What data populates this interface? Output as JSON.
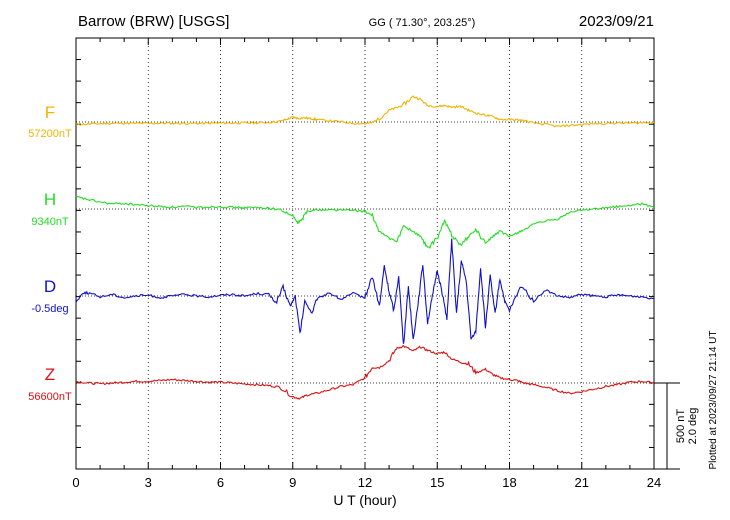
{
  "header": {
    "station": "Barrow (BRW)  [USGS]",
    "coords": "GG ( 71.30°, 203.25°)",
    "date": "2023/09/21"
  },
  "side_note": "Plotted at 2023/09/27 21:14 UT",
  "scale_bar": {
    "line1": "500 nT",
    "line2": "2.0 deg"
  },
  "chart_data": {
    "type": "line",
    "xlabel": "U T (hour)",
    "xlim": [
      0,
      24
    ],
    "xticks": [
      "0",
      "3",
      "6",
      "9",
      "12",
      "15",
      "18",
      "21",
      "24"
    ],
    "grid": true,
    "series": [
      {
        "name": "F",
        "baseline_label": "57200nT",
        "color": "#f0b400",
        "x": [
          0,
          0.5,
          1,
          1.5,
          2,
          2.5,
          3,
          3.5,
          4,
          4.5,
          5,
          5.5,
          6,
          6.5,
          7,
          7.5,
          8,
          8.5,
          8.8,
          9,
          9.2,
          9.5,
          9.8,
          10,
          10.5,
          11,
          11.5,
          12,
          12.3,
          12.6,
          13,
          13.3,
          13.6,
          14,
          14.3,
          14.6,
          15,
          15.3,
          15.6,
          16,
          16.3,
          16.6,
          17,
          17.3,
          17.6,
          18,
          18.3,
          18.6,
          19,
          19.5,
          20,
          20.5,
          21,
          21.5,
          22,
          22.5,
          23,
          23.5,
          24
        ],
        "y": [
          -14,
          -12,
          -10,
          -8,
          -7,
          -8,
          -8,
          -7,
          -7,
          -8,
          -8,
          -7,
          -6,
          -6,
          -5,
          -5,
          -2,
          5,
          18,
          29,
          22,
          24,
          19,
          14,
          7,
          1,
          -7,
          -10,
          -4,
          23,
          68,
          82,
          100,
          148,
          132,
          96,
          90,
          96,
          87,
          90,
          68,
          52,
          40,
          32,
          15,
          14,
          12,
          8,
          -6,
          -14,
          -26,
          -20,
          -15,
          -10,
          -8,
          -6,
          -6,
          -4,
          -2
        ]
      },
      {
        "name": "H",
        "baseline_label": "9340nT",
        "color": "#22dd22",
        "x": [
          0,
          0.5,
          1,
          1.5,
          2,
          2.5,
          3,
          3.5,
          4,
          4.5,
          5,
          5.5,
          6,
          6.5,
          7,
          7.5,
          8,
          8.5,
          9,
          9.2,
          9.4,
          9.6,
          10,
          10.5,
          11,
          11.5,
          12,
          12.3,
          12.6,
          13,
          13.3,
          13.6,
          14,
          14.3,
          14.6,
          15,
          15.3,
          15.6,
          16,
          16.3,
          16.6,
          17,
          17.3,
          17.6,
          18,
          18.3,
          18.6,
          19,
          19.5,
          20,
          20.5,
          21,
          21.5,
          22,
          22.5,
          23,
          23.5,
          24
        ],
        "y": [
          70,
          55,
          40,
          30,
          32,
          25,
          20,
          15,
          10,
          15,
          10,
          12,
          14,
          10,
          8,
          8,
          5,
          -5,
          -40,
          -80,
          -60,
          -10,
          -5,
          -5,
          -5,
          -8,
          -15,
          -40,
          -130,
          -170,
          -190,
          -100,
          -130,
          -160,
          -230,
          -170,
          -70,
          -150,
          -210,
          -160,
          -120,
          -200,
          -160,
          -130,
          -160,
          -140,
          -120,
          -90,
          -70,
          -60,
          -20,
          -5,
          0,
          5,
          15,
          20,
          30,
          10
        ]
      },
      {
        "name": "D",
        "baseline_label": "-0.5deg",
        "color": "#1111cc",
        "x": [
          0,
          0.3,
          0.6,
          1,
          1.5,
          2,
          2.5,
          3,
          3.5,
          4,
          4.5,
          5,
          5.5,
          6,
          6.5,
          7,
          7.5,
          8,
          8.3,
          8.6,
          8.9,
          9.1,
          9.3,
          9.5,
          9.8,
          10,
          10.5,
          11,
          11.5,
          12,
          12.3,
          12.6,
          12.8,
          13,
          13.2,
          13.4,
          13.6,
          13.8,
          14,
          14.2,
          14.4,
          14.6,
          14.8,
          15,
          15.2,
          15.4,
          15.6,
          15.8,
          16,
          16.2,
          16.4,
          16.6,
          16.8,
          17,
          17.2,
          17.4,
          17.6,
          17.8,
          18,
          18.5,
          19,
          19.5,
          20,
          20.5,
          21,
          21.5,
          22,
          22.5,
          23,
          23.5,
          24
        ],
        "y": [
          -0.14,
          0.08,
          0.06,
          -0.02,
          0.04,
          -0.04,
          0.0,
          0.02,
          -0.04,
          0.0,
          0.04,
          0.0,
          -0.02,
          0.02,
          0.04,
          0.0,
          0.06,
          0.04,
          -0.16,
          0.2,
          -0.24,
          0.0,
          -0.88,
          -0.12,
          -0.4,
          -0.08,
          0.08,
          -0.08,
          0.06,
          -0.04,
          0.46,
          -0.24,
          0.7,
          0.1,
          -0.34,
          0.48,
          -1.16,
          0.22,
          -1.02,
          -0.18,
          0.74,
          -0.62,
          -0.02,
          0.6,
          0.08,
          -0.52,
          1.3,
          -0.4,
          0.8,
          0.36,
          -1.0,
          -0.82,
          0.66,
          -0.74,
          0.46,
          -0.42,
          0.4,
          -0.12,
          -0.34,
          0.24,
          -0.12,
          0.14,
          0.0,
          -0.04,
          0.04,
          0.0,
          -0.02,
          0.02,
          0.0,
          -0.02,
          -0.06
        ]
      },
      {
        "name": "Z",
        "baseline_label": "56600nT",
        "color": "#dd1111",
        "x": [
          0,
          0.5,
          1,
          1.5,
          2,
          2.5,
          3,
          3.5,
          4,
          4.5,
          5,
          5.5,
          6,
          6.5,
          7,
          7.5,
          8,
          8.5,
          9,
          9.3,
          9.6,
          10,
          10.5,
          11,
          11.5,
          12,
          12.3,
          12.6,
          13,
          13.3,
          13.6,
          14,
          14.3,
          14.6,
          15,
          15.3,
          15.6,
          16,
          16.3,
          16.6,
          17,
          17.3,
          17.6,
          18,
          18.3,
          18.6,
          19,
          19.5,
          20,
          20.5,
          21,
          21.5,
          22,
          22.5,
          23,
          23.5,
          24
        ],
        "y": [
          10,
          0,
          -5,
          0,
          5,
          10,
          10,
          15,
          20,
          15,
          10,
          5,
          5,
          0,
          -5,
          -10,
          -15,
          -25,
          -80,
          -90,
          -70,
          -60,
          -40,
          -20,
          -10,
          30,
          90,
          90,
          130,
          200,
          215,
          185,
          210,
          190,
          170,
          180,
          140,
          120,
          110,
          60,
          80,
          50,
          30,
          20,
          15,
          0,
          -10,
          -25,
          -45,
          -60,
          -50,
          -35,
          -20,
          -10,
          5,
          10,
          0
        ]
      }
    ]
  }
}
